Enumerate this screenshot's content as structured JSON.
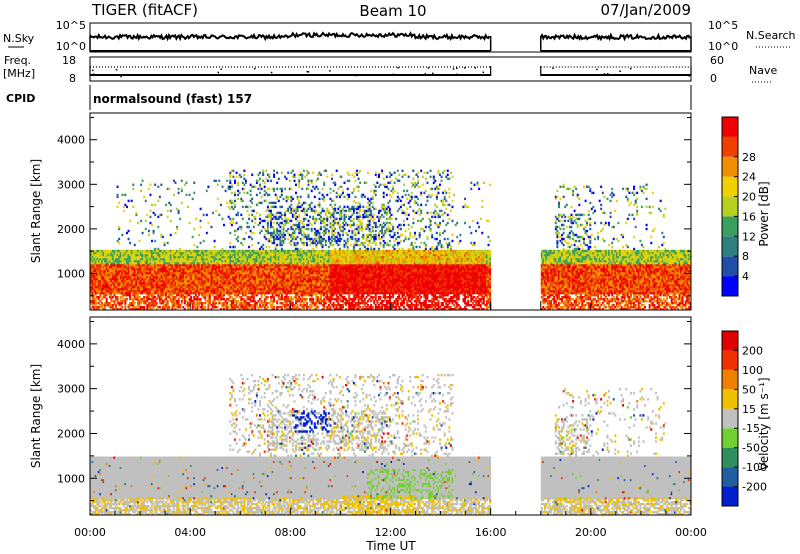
{
  "header": {
    "radar": "TIGER (fitACF)",
    "beam": "Beam 10",
    "date": "07/Jan/2009"
  },
  "top_panels": {
    "nsky_label": "N.Sky",
    "nsky_ticks": [
      "10^5",
      "10^0"
    ],
    "nsearch_label": "N.Search",
    "nsearch_ticks": [
      "10^5",
      "10^0"
    ],
    "freq_label": "Freq.",
    "freq_unit": "[MHz]",
    "freq_ticks": [
      "18",
      "8"
    ],
    "nave_label": "Nave",
    "nave_ticks": [
      "60",
      "0"
    ],
    "cpid_label": "CPID",
    "cpid_value": "normalsound (fast) 157"
  },
  "chart_data": [
    {
      "type": "heatmap",
      "name": "Power",
      "ylabel": "Slant Range [km]",
      "ylim": [
        180,
        4600
      ],
      "yticks": [
        "1000",
        "2000",
        "3000",
        "4000"
      ],
      "x_domain_hours": [
        0,
        24
      ],
      "data_gap_hours": [
        16,
        18
      ],
      "colorbar": {
        "label": "Power [dB]",
        "ticks": [
          "4",
          "8",
          "12",
          "16",
          "20",
          "24",
          "28"
        ],
        "colors": [
          "#0000ff",
          "#1f4fa8",
          "#2f7f80",
          "#3aa060",
          "#b8d020",
          "#f0d000",
          "#f09000",
          "#f04000",
          "#f00000"
        ]
      }
    },
    {
      "type": "heatmap",
      "name": "Velocity",
      "ylabel": "Slant Range [km]",
      "ylim": [
        180,
        4600
      ],
      "yticks": [
        "1000",
        "2000",
        "3000",
        "4000"
      ],
      "xlabel": "Time UT",
      "xticks": [
        "00:00",
        "04:00",
        "08:00",
        "12:00",
        "16:00",
        "20:00",
        "00:00"
      ],
      "x_domain_hours": [
        0,
        24
      ],
      "data_gap_hours": [
        16,
        18
      ],
      "colorbar": {
        "label": "Velocity [m s⁻¹]",
        "ticks": [
          "200",
          "100",
          "50",
          "15",
          "-15",
          "-50",
          "-100",
          "-200"
        ],
        "colors": [
          "#0020d0",
          "#1f5fa0",
          "#2f8f60",
          "#70d030",
          "#c0c0c0",
          "#f0c000",
          "#f08000",
          "#f03000",
          "#e00000"
        ]
      }
    }
  ]
}
